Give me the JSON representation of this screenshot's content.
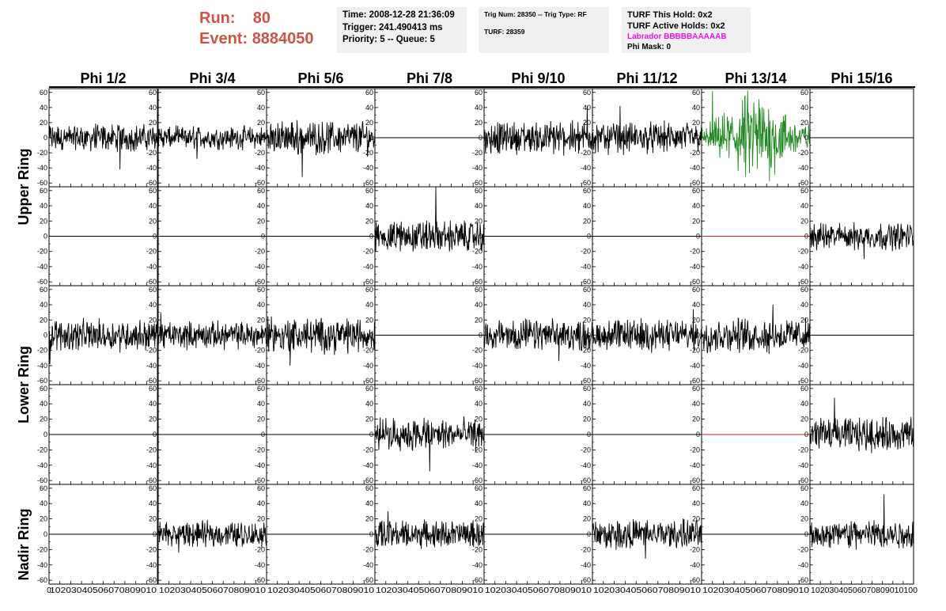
{
  "header": {
    "run_label": "Run:",
    "run_value": "80",
    "event_label": "Event:",
    "event_value": "8884050",
    "box1": {
      "time": "Time: 2008-12-28 21:36:09",
      "trigger": "Trigger: 241.490413 ms",
      "priority": "Priority: 5 -- Queue: 5"
    },
    "box2": {
      "trig": "Trig Num: 28350 -- Trig Type: RF",
      "turf": "TURF: 28359"
    },
    "box3": {
      "this_hold": "TURF This Hold: 0x2",
      "active_holds": "TURF Active Holds: 0x2",
      "labrador": "Labrador BBBBBAAAAAB",
      "phi_mask": "Phi Mask: 0"
    }
  },
  "colors": {
    "header_red": "#cc5544",
    "labrador_magenta": "#ee11ee",
    "trace_black": "#000000",
    "trace_green": "#228822",
    "trace_red": "#cc2222",
    "box_bg": "#f0f0f0"
  },
  "chart_data": {
    "type": "line",
    "columns": [
      "Phi 1/2",
      "Phi 3/4",
      "Phi 5/6",
      "Phi 7/8",
      "Phi 9/10",
      "Phi 11/12",
      "Phi 13/14",
      "Phi 15/16"
    ],
    "row_groups": [
      "Upper Ring",
      "Lower Ring",
      "Nadir Ring"
    ],
    "x_range": [
      0,
      100
    ],
    "y_range": [
      -65,
      65
    ],
    "y_ticks": [
      60,
      40,
      20,
      0,
      -20,
      -40,
      -60
    ],
    "x_ticks": [
      0,
      10,
      20,
      30,
      40,
      50,
      60,
      70,
      80,
      90,
      100
    ],
    "bottom_axis_text": [
      "0",
      "10203040506070809010",
      "10203040506070809010",
      "10203040506070809010",
      "10203040506070809010",
      "10203040506070809010",
      "10203040506070809010",
      "10203040506070809010",
      "10203040506070809010100"
    ],
    "panels": [
      [
        {
          "kind": "noise",
          "amp": 13,
          "spike": 42
        },
        {
          "kind": "noise",
          "amp": 11,
          "spike": 28
        },
        {
          "kind": "noise",
          "amp": 16,
          "spike": 52
        },
        {
          "kind": "flat"
        },
        {
          "kind": "noise",
          "amp": 16,
          "spike": 42
        },
        {
          "kind": "noise",
          "amp": 15,
          "spike": 42
        },
        {
          "kind": "burst",
          "amp": 34,
          "spike": 62,
          "color": "green"
        },
        {
          "kind": "flat"
        }
      ],
      [
        {
          "kind": "flat"
        },
        {
          "kind": "flat"
        },
        {
          "kind": "flat"
        },
        {
          "kind": "noise",
          "amp": 15,
          "spike": 65
        },
        {
          "kind": "flat"
        },
        {
          "kind": "flat"
        },
        {
          "kind": "flat",
          "color": "red"
        },
        {
          "kind": "noise",
          "amp": 13,
          "spike": 30
        }
      ],
      [
        {
          "kind": "noise",
          "amp": 15,
          "spike": 38
        },
        {
          "kind": "noise",
          "amp": 13,
          "spike": 30
        },
        {
          "kind": "noise",
          "amp": 17,
          "spike": 40
        },
        {
          "kind": "flat"
        },
        {
          "kind": "noise",
          "amp": 15,
          "spike": 34
        },
        {
          "kind": "noise",
          "amp": 15,
          "spike": 34
        },
        {
          "kind": "noise",
          "amp": 16,
          "spike": 40
        },
        {
          "kind": "flat"
        }
      ],
      [
        {
          "kind": "flat"
        },
        {
          "kind": "flat"
        },
        {
          "kind": "flat"
        },
        {
          "kind": "noise",
          "amp": 15,
          "spike": 48
        },
        {
          "kind": "flat"
        },
        {
          "kind": "flat"
        },
        {
          "kind": "flat",
          "color": "red"
        },
        {
          "kind": "noise",
          "amp": 16,
          "spike": 48
        }
      ],
      [
        {
          "kind": "flat"
        },
        {
          "kind": "noise",
          "amp": 12,
          "spike": 24
        },
        {
          "kind": "flat"
        },
        {
          "kind": "noise",
          "amp": 13,
          "spike": 30
        },
        {
          "kind": "flat"
        },
        {
          "kind": "noise",
          "amp": 14,
          "spike": 32
        },
        {
          "kind": "flat"
        },
        {
          "kind": "noise",
          "amp": 14,
          "spike": 52
        }
      ]
    ]
  }
}
